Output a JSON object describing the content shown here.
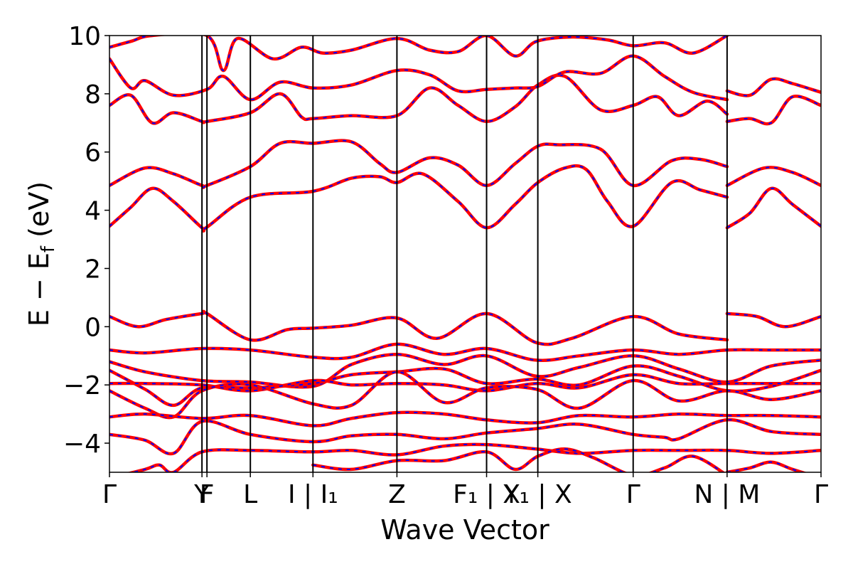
{
  "chart_data": {
    "type": "line",
    "title": "",
    "xlabel": "Wave Vector",
    "ylabel": {
      "main": "E − E",
      "sub": "f",
      "unit": " (eV)"
    },
    "ylim": [
      -5,
      10
    ],
    "yticks": [
      -4,
      -2,
      0,
      2,
      4,
      6,
      8,
      10
    ],
    "ytick_labels": [
      "−4",
      "−2",
      "0",
      "2",
      "4",
      "6",
      "8",
      "10"
    ],
    "xlim": [
      0,
      1
    ],
    "kpoint_ticks": [
      {
        "x": 0.0,
        "label": "Γ"
      },
      {
        "x": 0.13,
        "label": "Y"
      },
      {
        "x": 0.137,
        "label": "F"
      },
      {
        "x": 0.198,
        "label": "L"
      },
      {
        "x": 0.286,
        "label": "I | I₁"
      },
      {
        "x": 0.404,
        "label": "Z"
      },
      {
        "x": 0.53,
        "label": "F₁ | X"
      },
      {
        "x": 0.602,
        "label": "Y₁ | X"
      },
      {
        "x": 0.736,
        "label": "Γ"
      },
      {
        "x": 0.868,
        "label": "N | M"
      },
      {
        "x": 1.0,
        "label": "Γ"
      }
    ],
    "series_style": {
      "solid_color": "#ff0000",
      "dashed_color": "#0000ff"
    },
    "bands": [
      [
        [
          0,
          3.45
        ],
        [
          0.03,
          4.1
        ],
        [
          0.06,
          4.75
        ],
        [
          0.09,
          4.3
        ],
        [
          0.13,
          3.4
        ],
        [
          0.137,
          3.42
        ],
        [
          0.198,
          4.45
        ],
        [
          0.286,
          4.65
        ],
        [
          0.34,
          5.1
        ],
        [
          0.38,
          5.15
        ],
        [
          0.404,
          4.95
        ],
        [
          0.44,
          5.25
        ],
        [
          0.49,
          4.3
        ],
        [
          0.53,
          3.4
        ],
        [
          0.57,
          4.2
        ],
        [
          0.602,
          4.95
        ],
        [
          0.64,
          5.45
        ],
        [
          0.67,
          5.4
        ],
        [
          0.7,
          4.3
        ],
        [
          0.736,
          3.45
        ],
        [
          0.79,
          4.95
        ],
        [
          0.83,
          4.7
        ],
        [
          0.868,
          4.45
        ]
      ],
      [
        [
          0.868,
          3.4
        ],
        [
          0.9,
          3.9
        ],
        [
          0.93,
          4.75
        ],
        [
          0.96,
          4.2
        ],
        [
          1.0,
          3.45
        ]
      ],
      [
        [
          0,
          4.85
        ],
        [
          0.05,
          5.45
        ],
        [
          0.09,
          5.25
        ],
        [
          0.13,
          4.85
        ],
        [
          0.137,
          4.85
        ],
        [
          0.198,
          5.5
        ],
        [
          0.24,
          6.3
        ],
        [
          0.286,
          6.3
        ],
        [
          0.34,
          6.35
        ],
        [
          0.38,
          5.6
        ],
        [
          0.404,
          5.3
        ],
        [
          0.45,
          5.8
        ],
        [
          0.49,
          5.55
        ],
        [
          0.53,
          4.85
        ],
        [
          0.57,
          5.6
        ],
        [
          0.602,
          6.2
        ],
        [
          0.63,
          6.25
        ],
        [
          0.69,
          6.1
        ],
        [
          0.736,
          4.85
        ],
        [
          0.79,
          5.7
        ],
        [
          0.83,
          5.75
        ],
        [
          0.868,
          5.5
        ]
      ],
      [
        [
          0.868,
          4.85
        ],
        [
          0.92,
          5.45
        ],
        [
          0.96,
          5.3
        ],
        [
          1.0,
          4.85
        ]
      ],
      [
        [
          0,
          7.6
        ],
        [
          0.03,
          7.95
        ],
        [
          0.06,
          7.0
        ],
        [
          0.09,
          7.35
        ],
        [
          0.13,
          7.05
        ],
        [
          0.137,
          7.05
        ],
        [
          0.198,
          7.35
        ],
        [
          0.24,
          8.0
        ],
        [
          0.27,
          7.2
        ],
        [
          0.286,
          7.15
        ],
        [
          0.34,
          7.25
        ],
        [
          0.404,
          7.25
        ],
        [
          0.45,
          8.2
        ],
        [
          0.49,
          7.6
        ],
        [
          0.53,
          7.05
        ],
        [
          0.57,
          7.55
        ],
        [
          0.602,
          8.3
        ],
        [
          0.64,
          8.6
        ],
        [
          0.69,
          7.45
        ],
        [
          0.736,
          7.6
        ],
        [
          0.77,
          7.9
        ],
        [
          0.8,
          7.25
        ],
        [
          0.84,
          7.75
        ],
        [
          0.868,
          7.3
        ]
      ],
      [
        [
          0.868,
          7.05
        ],
        [
          0.9,
          7.15
        ],
        [
          0.93,
          7.0
        ],
        [
          0.96,
          7.9
        ],
        [
          1.0,
          7.6
        ]
      ],
      [
        [
          0,
          9.2
        ],
        [
          0.03,
          8.2
        ],
        [
          0.05,
          8.45
        ],
        [
          0.09,
          7.95
        ],
        [
          0.137,
          8.15
        ],
        [
          0.16,
          8.6
        ],
        [
          0.198,
          7.8
        ],
        [
          0.24,
          8.4
        ],
        [
          0.286,
          8.2
        ],
        [
          0.34,
          8.3
        ],
        [
          0.404,
          8.8
        ],
        [
          0.45,
          8.65
        ],
        [
          0.49,
          8.1
        ],
        [
          0.53,
          8.15
        ],
        [
          0.57,
          8.2
        ],
        [
          0.602,
          8.25
        ],
        [
          0.64,
          8.75
        ],
        [
          0.69,
          8.7
        ],
        [
          0.736,
          9.3
        ],
        [
          0.78,
          8.6
        ],
        [
          0.82,
          8.05
        ],
        [
          0.868,
          7.8
        ]
      ],
      [
        [
          0.868,
          8.1
        ],
        [
          0.9,
          7.95
        ],
        [
          0.93,
          8.5
        ],
        [
          0.96,
          8.35
        ],
        [
          1.0,
          8.05
        ]
      ],
      [
        [
          0,
          9.6
        ],
        [
          0.03,
          9.8
        ],
        [
          0.06,
          10.0
        ],
        [
          0.137,
          10.0
        ],
        [
          0.16,
          8.8
        ],
        [
          0.18,
          9.9
        ],
        [
          0.23,
          9.2
        ],
        [
          0.27,
          9.6
        ],
        [
          0.3,
          9.4
        ],
        [
          0.34,
          9.5
        ],
        [
          0.404,
          9.9
        ],
        [
          0.45,
          9.5
        ],
        [
          0.49,
          9.45
        ],
        [
          0.53,
          10.0
        ],
        [
          0.57,
          9.3
        ],
        [
          0.6,
          9.8
        ],
        [
          0.65,
          9.95
        ],
        [
          0.7,
          9.85
        ],
        [
          0.736,
          9.65
        ],
        [
          0.78,
          9.75
        ],
        [
          0.82,
          9.4
        ],
        [
          0.868,
          10.0
        ]
      ],
      [
        [
          0,
          0.35
        ],
        [
          0.04,
          0.0
        ],
        [
          0.08,
          0.25
        ],
        [
          0.13,
          0.45
        ],
        [
          0.137,
          0.45
        ],
        [
          0.198,
          -0.45
        ],
        [
          0.25,
          -0.1
        ],
        [
          0.286,
          -0.05
        ],
        [
          0.34,
          0.05
        ],
        [
          0.404,
          0.3
        ],
        [
          0.46,
          -0.4
        ],
        [
          0.53,
          0.45
        ],
        [
          0.6,
          -0.55
        ],
        [
          0.65,
          -0.4
        ],
        [
          0.736,
          0.35
        ],
        [
          0.8,
          -0.25
        ],
        [
          0.868,
          -0.45
        ]
      ],
      [
        [
          0.868,
          0.45
        ],
        [
          0.91,
          0.35
        ],
        [
          0.95,
          0.0
        ],
        [
          1.0,
          0.35
        ]
      ],
      [
        [
          0,
          -0.8
        ],
        [
          0.05,
          -0.9
        ],
        [
          0.13,
          -0.75
        ],
        [
          0.198,
          -0.8
        ],
        [
          0.286,
          -1.05
        ],
        [
          0.34,
          -1.05
        ],
        [
          0.404,
          -0.6
        ],
        [
          0.47,
          -0.95
        ],
        [
          0.53,
          -0.75
        ],
        [
          0.6,
          -1.15
        ],
        [
          0.66,
          -1.0
        ],
        [
          0.736,
          -0.8
        ],
        [
          0.8,
          -0.95
        ],
        [
          0.868,
          -0.8
        ],
        [
          0.93,
          -0.8
        ],
        [
          1.0,
          -0.8
        ]
      ],
      [
        [
          0,
          -1.2
        ],
        [
          0.05,
          -1.55
        ],
        [
          0.13,
          -1.85
        ],
        [
          0.198,
          -1.9
        ],
        [
          0.286,
          -2.05
        ],
        [
          0.34,
          -1.3
        ],
        [
          0.404,
          -0.95
        ],
        [
          0.47,
          -1.3
        ],
        [
          0.53,
          -1.0
        ],
        [
          0.6,
          -1.7
        ],
        [
          0.66,
          -1.4
        ],
        [
          0.736,
          -1.0
        ],
        [
          0.8,
          -1.45
        ],
        [
          0.868,
          -1.9
        ],
        [
          0.93,
          -1.35
        ],
        [
          1.0,
          -1.15
        ]
      ],
      [
        [
          0,
          -1.5
        ],
        [
          0.05,
          -2.15
        ],
        [
          0.09,
          -2.7
        ],
        [
          0.13,
          -2.1
        ],
        [
          0.198,
          -2.1
        ],
        [
          0.286,
          -1.95
        ],
        [
          0.34,
          -1.65
        ],
        [
          0.404,
          -1.55
        ],
        [
          0.47,
          -1.45
        ],
        [
          0.53,
          -1.95
        ],
        [
          0.6,
          -1.8
        ],
        [
          0.66,
          -2.0
        ],
        [
          0.736,
          -1.35
        ],
        [
          0.8,
          -1.7
        ],
        [
          0.868,
          -2.2
        ],
        [
          0.93,
          -2.05
        ],
        [
          1.0,
          -1.5
        ]
      ],
      [
        [
          0,
          -1.95
        ],
        [
          0.05,
          -1.95
        ],
        [
          0.13,
          -2.0
        ],
        [
          0.198,
          -2.2
        ],
        [
          0.286,
          -1.85
        ],
        [
          0.34,
          -2.0
        ],
        [
          0.404,
          -1.95
        ],
        [
          0.47,
          -2.0
        ],
        [
          0.53,
          -2.2
        ],
        [
          0.6,
          -1.95
        ],
        [
          0.66,
          -2.1
        ],
        [
          0.736,
          -1.65
        ],
        [
          0.8,
          -1.95
        ],
        [
          0.868,
          -1.95
        ],
        [
          0.93,
          -1.95
        ],
        [
          1.0,
          -1.95
        ]
      ],
      [
        [
          0,
          -2.2
        ],
        [
          0.05,
          -2.8
        ],
        [
          0.09,
          -3.1
        ],
        [
          0.13,
          -2.2
        ],
        [
          0.198,
          -2.0
        ],
        [
          0.286,
          -2.65
        ],
        [
          0.34,
          -2.7
        ],
        [
          0.404,
          -1.55
        ],
        [
          0.47,
          -2.6
        ],
        [
          0.53,
          -2.1
        ],
        [
          0.6,
          -2.15
        ],
        [
          0.66,
          -2.8
        ],
        [
          0.736,
          -1.85
        ],
        [
          0.8,
          -2.55
        ],
        [
          0.868,
          -2.2
        ],
        [
          0.93,
          -2.5
        ],
        [
          1.0,
          -2.2
        ]
      ],
      [
        [
          0,
          -3.1
        ],
        [
          0.05,
          -3.0
        ],
        [
          0.13,
          -3.15
        ],
        [
          0.198,
          -3.05
        ],
        [
          0.286,
          -3.4
        ],
        [
          0.34,
          -3.15
        ],
        [
          0.404,
          -2.95
        ],
        [
          0.47,
          -3.0
        ],
        [
          0.53,
          -3.2
        ],
        [
          0.6,
          -3.3
        ],
        [
          0.66,
          -3.05
        ],
        [
          0.736,
          -3.1
        ],
        [
          0.8,
          -3.0
        ],
        [
          0.868,
          -3.05
        ],
        [
          0.93,
          -3.05
        ],
        [
          1.0,
          -3.1
        ]
      ],
      [
        [
          0,
          -3.7
        ],
        [
          0.05,
          -3.9
        ],
        [
          0.09,
          -4.35
        ],
        [
          0.13,
          -3.25
        ],
        [
          0.198,
          -3.7
        ],
        [
          0.286,
          -3.95
        ],
        [
          0.34,
          -3.75
        ],
        [
          0.404,
          -3.7
        ],
        [
          0.47,
          -3.85
        ],
        [
          0.53,
          -3.65
        ],
        [
          0.6,
          -3.5
        ],
        [
          0.66,
          -3.35
        ],
        [
          0.736,
          -3.7
        ],
        [
          0.78,
          -3.8
        ],
        [
          0.8,
          -3.85
        ],
        [
          0.868,
          -3.2
        ],
        [
          0.93,
          -3.6
        ],
        [
          1.0,
          -3.7
        ]
      ],
      [
        [
          0,
          -5.2
        ],
        [
          0.05,
          -4.9
        ],
        [
          0.07,
          -4.75
        ],
        [
          0.09,
          -5.0
        ],
        [
          0.13,
          -4.3
        ],
        [
          0.198,
          -4.25
        ],
        [
          0.286,
          -4.3
        ],
        [
          0.34,
          -4.25
        ],
        [
          0.404,
          -4.4
        ],
        [
          0.47,
          -4.1
        ],
        [
          0.53,
          -4.05
        ],
        [
          0.6,
          -4.2
        ],
        [
          0.66,
          -4.35
        ],
        [
          0.736,
          -4.25
        ],
        [
          0.8,
          -4.25
        ],
        [
          0.868,
          -4.25
        ],
        [
          0.93,
          -4.35
        ],
        [
          1.0,
          -4.25
        ]
      ],
      [
        [
          0.286,
          -4.75
        ],
        [
          0.34,
          -4.9
        ],
        [
          0.404,
          -4.6
        ],
        [
          0.47,
          -4.6
        ],
        [
          0.53,
          -4.3
        ],
        [
          0.57,
          -4.9
        ],
        [
          0.602,
          -4.45
        ],
        [
          0.64,
          -4.2
        ],
        [
          0.68,
          -4.5
        ],
        [
          0.736,
          -5.1
        ],
        [
          0.78,
          -4.85
        ],
        [
          0.82,
          -4.45
        ],
        [
          0.868,
          -5.1
        ]
      ],
      [
        [
          0.868,
          -5.0
        ],
        [
          0.9,
          -4.85
        ],
        [
          0.93,
          -4.65
        ],
        [
          0.96,
          -4.9
        ],
        [
          1.0,
          -5.2
        ]
      ]
    ]
  }
}
